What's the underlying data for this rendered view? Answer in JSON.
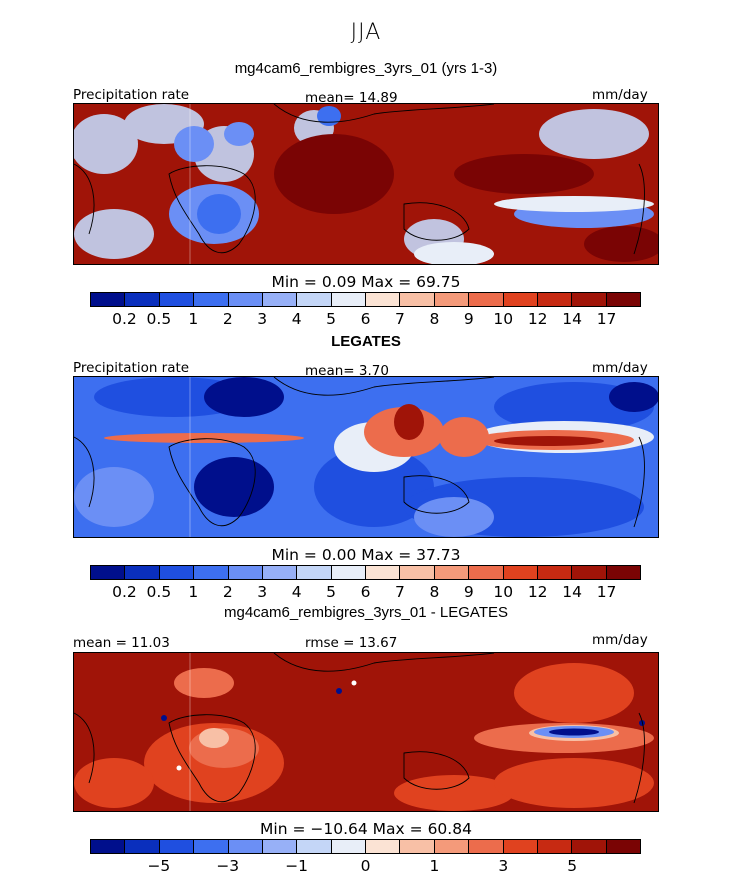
{
  "header": {
    "season": "JJA"
  },
  "panels": [
    {
      "title": "mg4cam6_rembigres_3yrs_01 (yrs 1-3)",
      "left_label": "Precipitation rate",
      "center_label": "mean=  14.89",
      "units": "mm/day",
      "minmax": "Min =    0.09  Max =   69.75",
      "color_ticks": [
        "0.2",
        "0.5",
        "1",
        "2",
        "3",
        "4",
        "5",
        "6",
        "7",
        "8",
        "9",
        "10",
        "12",
        "14",
        "17"
      ]
    },
    {
      "title": "LEGATES",
      "left_label": "Precipitation rate",
      "center_label": "mean=   3.70",
      "units": "mm/day",
      "minmax": "Min =    0.00  Max =   37.73",
      "color_ticks": [
        "0.2",
        "0.5",
        "1",
        "2",
        "3",
        "4",
        "5",
        "6",
        "7",
        "8",
        "9",
        "10",
        "12",
        "14",
        "17"
      ]
    },
    {
      "title": "mg4cam6_rembigres_3yrs_01 - LEGATES",
      "left_label": "mean =   11.03",
      "center_label": "rmse =   13.67",
      "units": "mm/day",
      "minmax": "Min =  −10.64  Max =   60.84",
      "color_ticks": [
        "−5",
        "−3",
        "−1",
        "0",
        "1",
        "3",
        "5"
      ]
    }
  ],
  "colorbar_colors": [
    "#000f8c",
    "#0a2fbd",
    "#1f4fe0",
    "#3d6ff0",
    "#6b8ff5",
    "#97b0f7",
    "#c4d6f7",
    "#e8eef8",
    "#fbe3d4",
    "#f8c0a6",
    "#f49a7a",
    "#ec6c4c",
    "#e0421f",
    "#c72a12",
    "#a01408",
    "#7a0404"
  ]
}
